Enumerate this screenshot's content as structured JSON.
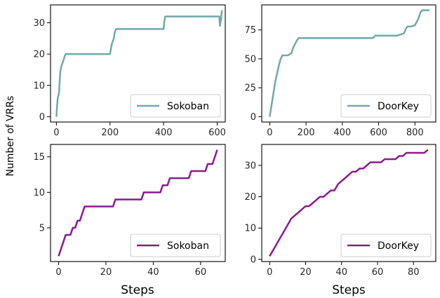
{
  "ylabel": "Number of VRRs",
  "xlabel_bottom": "Steps",
  "colors": {
    "teal": "#6fa8ab",
    "purple": "#8b1a8f"
  },
  "chart_data": [
    {
      "type": "line",
      "legend": "Sokoban",
      "legend_loc": "lower-right",
      "color": "#6fa8ab",
      "xlim": [
        -22,
        630
      ],
      "ylim": [
        -1.7,
        35.7
      ],
      "xticks": [
        0,
        200,
        400,
        600
      ],
      "yticks": [
        0,
        10,
        20,
        30
      ],
      "xlabel": "",
      "x": [
        0,
        2,
        5,
        8,
        10,
        12,
        14,
        16,
        18,
        22,
        26,
        30,
        34,
        38,
        42,
        200,
        202,
        206,
        210,
        214,
        218,
        222,
        400,
        402,
        404,
        406,
        608,
        610,
        612,
        614,
        616,
        618
      ],
      "y": [
        0,
        3,
        6,
        7,
        8,
        11,
        14,
        15,
        16,
        17,
        18,
        19,
        20,
        20,
        20,
        20,
        21,
        23,
        24,
        25,
        27,
        28,
        28,
        30,
        31,
        32,
        32,
        29,
        30,
        31,
        33,
        34
      ]
    },
    {
      "type": "line",
      "legend": "DoorKey",
      "legend_loc": "lower-right",
      "color": "#6fa8ab",
      "xlim": [
        -44,
        915
      ],
      "ylim": [
        -4.6,
        96.6
      ],
      "xticks": [
        0,
        200,
        400,
        600,
        800
      ],
      "yticks": [
        0,
        25,
        50,
        75
      ],
      "xlabel": "",
      "x": [
        0,
        10,
        20,
        30,
        40,
        50,
        60,
        70,
        80,
        100,
        120,
        130,
        140,
        150,
        160,
        200,
        300,
        400,
        500,
        570,
        580,
        600,
        700,
        740,
        750,
        760,
        780,
        800,
        810,
        820,
        830,
        840,
        880
      ],
      "y": [
        0,
        10,
        20,
        30,
        37,
        44,
        50,
        53,
        53,
        53,
        55,
        60,
        63,
        66,
        68,
        68,
        68,
        68,
        68,
        68,
        70,
        70,
        70,
        72,
        76,
        78,
        78,
        79,
        82,
        85,
        90,
        92,
        92
      ]
    },
    {
      "type": "line",
      "legend": "Sokoban",
      "legend_loc": "lower-right",
      "color": "#8b1a8f",
      "xlim": [
        -3.4,
        70.4
      ],
      "ylim": [
        0.25,
        16.75
      ],
      "xticks": [
        0,
        20,
        40,
        60
      ],
      "yticks": [
        5,
        10,
        15
      ],
      "xlabel": "Steps",
      "x": [
        0,
        1,
        2,
        3,
        4,
        5,
        6,
        7,
        8,
        9,
        10,
        11,
        12,
        13,
        23,
        24,
        35,
        36,
        43,
        44,
        46,
        47,
        55,
        56,
        62,
        63,
        65,
        66,
        67
      ],
      "y": [
        1,
        2,
        3,
        4,
        4,
        4,
        5,
        5,
        6,
        6,
        7,
        8,
        8,
        8,
        8,
        9,
        9,
        10,
        10,
        11,
        11,
        12,
        12,
        13,
        13,
        14,
        14,
        15,
        16
      ]
    },
    {
      "type": "line",
      "legend": "DoorKey",
      "legend_loc": "lower-right",
      "color": "#8b1a8f",
      "xlim": [
        -4.4,
        92.4
      ],
      "ylim": [
        -0.7,
        36.7
      ],
      "xticks": [
        0,
        20,
        40,
        60,
        80
      ],
      "yticks": [
        0,
        10,
        20,
        30
      ],
      "xlabel": "Steps",
      "x": [
        0,
        2,
        4,
        6,
        8,
        10,
        12,
        14,
        16,
        18,
        20,
        22,
        24,
        26,
        28,
        30,
        32,
        34,
        36,
        38,
        40,
        42,
        44,
        46,
        48,
        50,
        52,
        54,
        56,
        58,
        62,
        64,
        66,
        68,
        70,
        72,
        74,
        76,
        78,
        80,
        84,
        86,
        88
      ],
      "y": [
        1,
        3,
        5,
        7,
        9,
        11,
        13,
        14,
        15,
        16,
        17,
        17,
        18,
        19,
        20,
        20,
        21,
        22,
        22,
        24,
        25,
        26,
        27,
        28,
        28,
        29,
        29,
        30,
        31,
        31,
        31,
        32,
        32,
        32,
        32,
        33,
        33,
        34,
        34,
        34,
        34,
        34,
        35
      ]
    }
  ]
}
